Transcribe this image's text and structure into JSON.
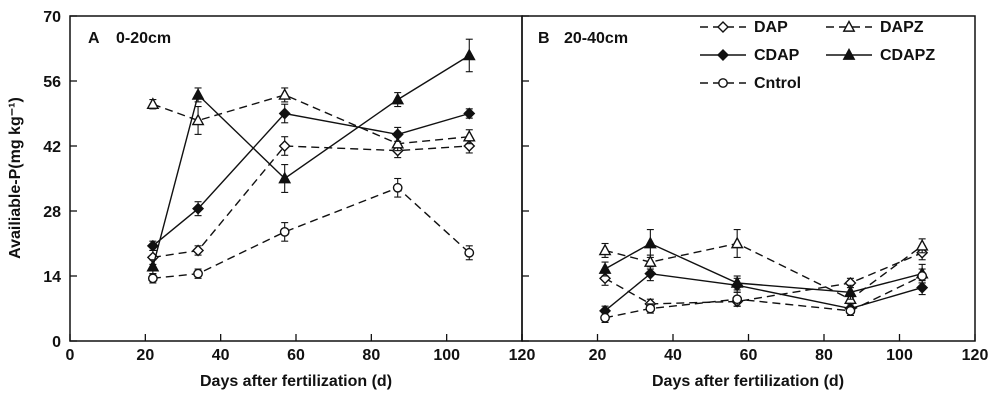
{
  "figure": {
    "ylabel": "Availiable-P(mg kg⁻¹)",
    "ink_color": "#111111",
    "background": "#ffffff"
  },
  "legend": {
    "position": "top-right",
    "entries": [
      "DAP",
      "DAPZ",
      "CDAP",
      "CDAPZ",
      "Cntrol"
    ]
  },
  "chart_data": [
    {
      "type": "line",
      "panel": "A",
      "depth_label": "0-20cm",
      "xlabel": "Days after fertilization (d)",
      "ylabel": "Availiable-P(mg kg⁻¹)",
      "xlim": [
        0,
        120
      ],
      "ylim": [
        0,
        70
      ],
      "grid": false,
      "xticks": [
        0,
        20,
        40,
        60,
        80,
        100,
        120
      ],
      "xtick_labels": [
        "0",
        "20",
        "40",
        "60",
        "80",
        "100",
        "120"
      ],
      "yticks": [
        0,
        14,
        28,
        42,
        56,
        70
      ],
      "ytick_labels": [
        "0",
        "14",
        "28",
        "42",
        "56",
        "70"
      ],
      "x": [
        22,
        34,
        57,
        87,
        106
      ],
      "series": [
        {
          "name": "DAP",
          "marker": "diamond",
          "fill": "open",
          "line": "dashed",
          "values": [
            18.0,
            19.5,
            42.0,
            41.0,
            42.0
          ],
          "errors": [
            1.5,
            1.0,
            2.0,
            1.5,
            1.5
          ]
        },
        {
          "name": "DAPZ",
          "marker": "triangle",
          "fill": "open",
          "line": "dashed",
          "values": [
            51.0,
            47.5,
            53.0,
            42.5,
            44.0
          ],
          "errors": [
            1.0,
            3.0,
            1.5,
            1.5,
            1.5
          ]
        },
        {
          "name": "CDAP",
          "marker": "diamond",
          "fill": "solid",
          "line": "solid",
          "values": [
            20.5,
            28.5,
            49.0,
            44.5,
            49.0
          ],
          "errors": [
            1.0,
            1.5,
            2.0,
            1.5,
            1.0
          ]
        },
        {
          "name": "CDAPZ",
          "marker": "triangle",
          "fill": "solid",
          "line": "solid",
          "values": [
            16.0,
            53.0,
            35.0,
            52.0,
            61.5
          ],
          "errors": [
            1.5,
            1.5,
            3.0,
            1.5,
            3.5
          ]
        },
        {
          "name": "Cntrol",
          "marker": "circle",
          "fill": "open",
          "line": "dashed",
          "values": [
            13.5,
            14.5,
            23.5,
            33.0,
            19.0
          ],
          "errors": [
            1.0,
            1.0,
            2.0,
            2.0,
            1.5
          ]
        }
      ]
    },
    {
      "type": "line",
      "panel": "B",
      "depth_label": "20-40cm",
      "xlabel": "Days after fertilization (d)",
      "ylabel": "Availiable-P(mg kg⁻¹)",
      "xlim": [
        0,
        120
      ],
      "ylim": [
        0,
        70
      ],
      "grid": false,
      "xticks": [
        0,
        20,
        40,
        60,
        80,
        100,
        120
      ],
      "xtick_labels": [
        "",
        "20",
        "40",
        "60",
        "80",
        "100",
        "120"
      ],
      "yticks": [
        0,
        14,
        28,
        42,
        56,
        70
      ],
      "ytick_labels": [],
      "x": [
        22,
        34,
        57,
        87,
        106
      ],
      "series": [
        {
          "name": "DAP",
          "marker": "diamond",
          "fill": "open",
          "line": "dashed",
          "values": [
            13.5,
            8.0,
            8.5,
            12.5,
            19.0
          ],
          "errors": [
            1.5,
            1.0,
            1.0,
            1.0,
            1.5
          ]
        },
        {
          "name": "DAPZ",
          "marker": "triangle",
          "fill": "open",
          "line": "dashed",
          "values": [
            19.5,
            17.0,
            21.0,
            9.0,
            20.5
          ],
          "errors": [
            1.5,
            1.5,
            3.0,
            1.0,
            1.5
          ]
        },
        {
          "name": "CDAP",
          "marker": "diamond",
          "fill": "solid",
          "line": "solid",
          "values": [
            6.5,
            14.5,
            12.0,
            7.0,
            11.5
          ],
          "errors": [
            1.0,
            1.5,
            1.5,
            1.0,
            1.5
          ]
        },
        {
          "name": "CDAPZ",
          "marker": "triangle",
          "fill": "solid",
          "line": "solid",
          "values": [
            15.5,
            21.0,
            12.5,
            10.5,
            14.5
          ],
          "errors": [
            1.5,
            3.0,
            1.5,
            1.5,
            2.0
          ]
        },
        {
          "name": "Cntrol",
          "marker": "circle",
          "fill": "open",
          "line": "dashed",
          "values": [
            5.0,
            7.0,
            9.0,
            6.5,
            14.0
          ],
          "errors": [
            1.0,
            1.0,
            1.5,
            1.0,
            1.5
          ]
        }
      ]
    }
  ]
}
